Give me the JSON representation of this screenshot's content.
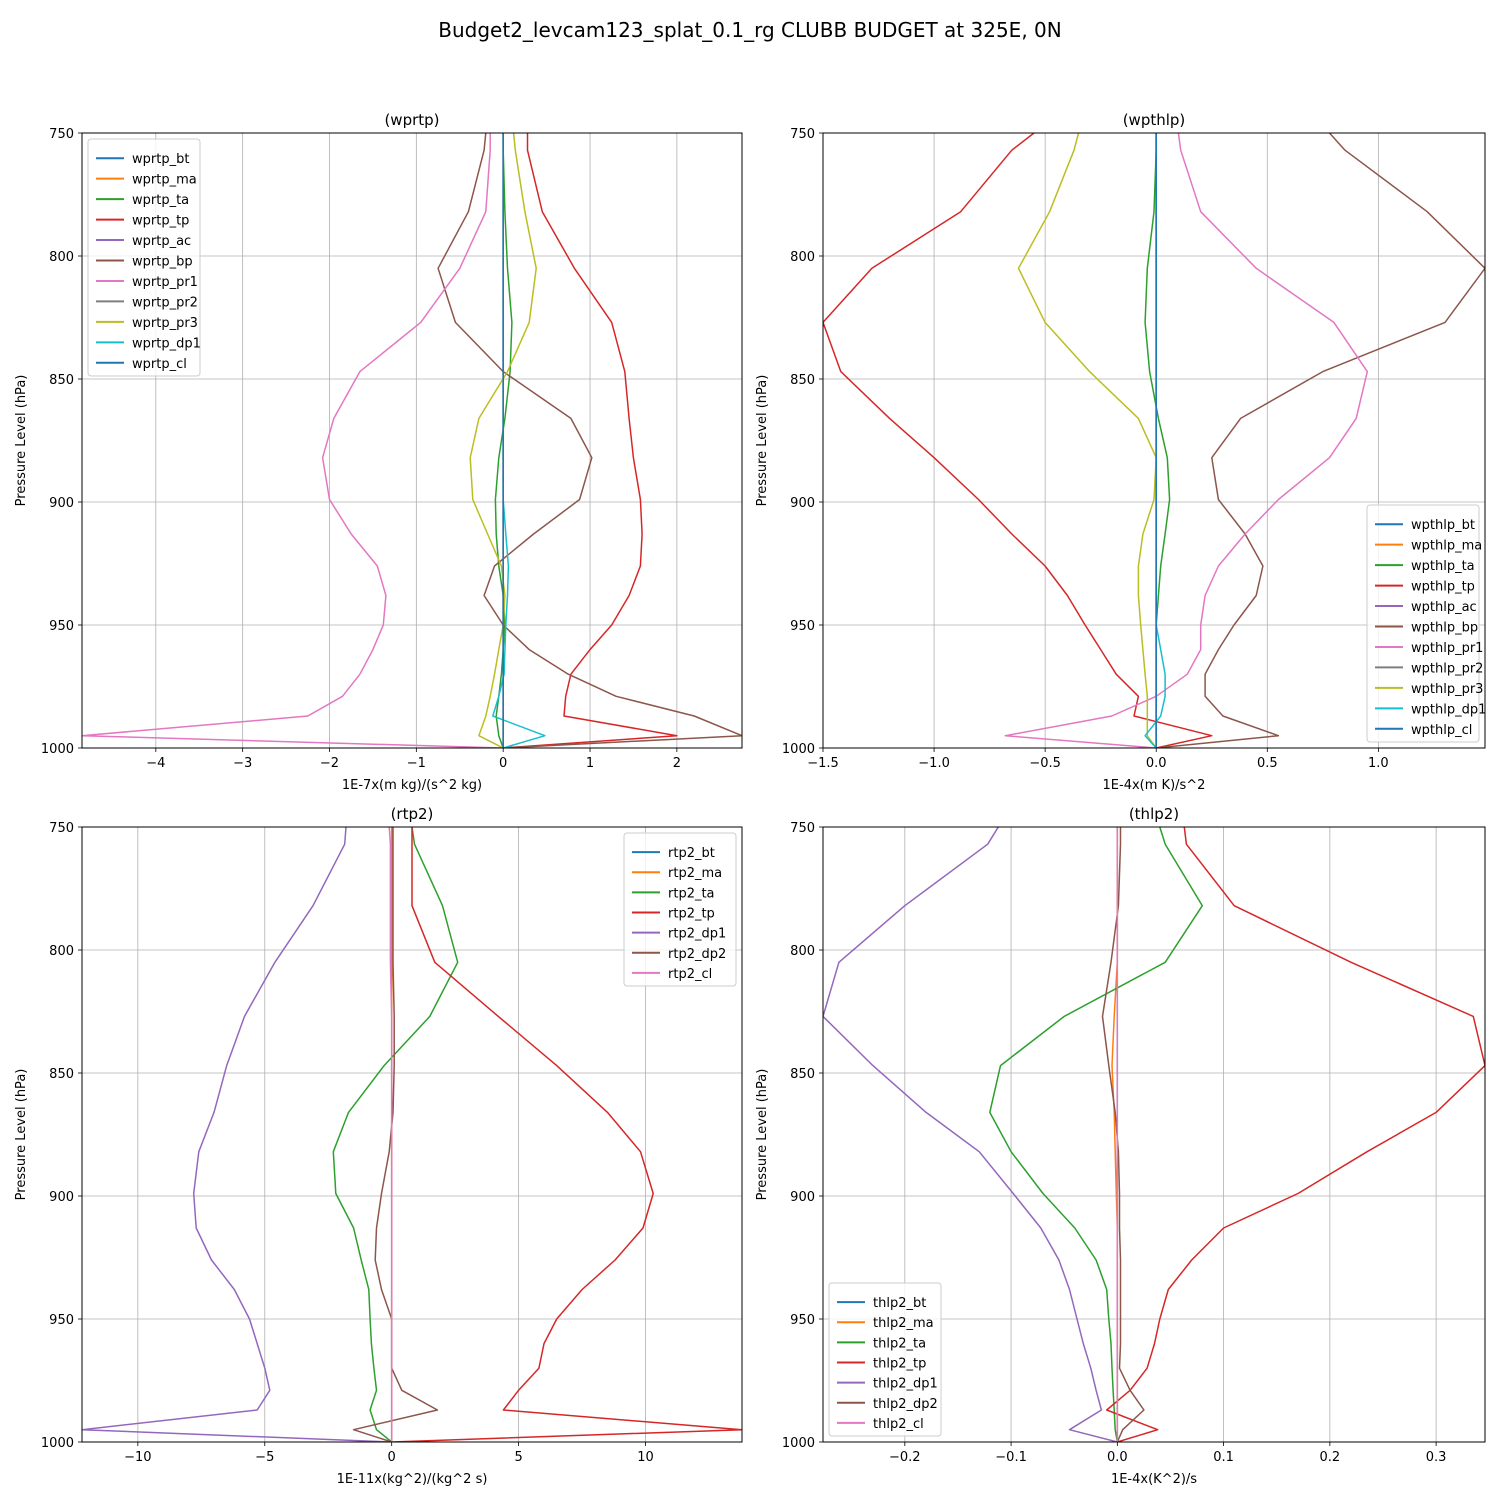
{
  "figure": {
    "title": "Budget2_levcam123_splat_0.1_rg CLUBB BUDGET at 325E, 0N"
  },
  "chart_data": [
    {
      "type": "line",
      "title": "(wprtp)",
      "xlabel": "1E-7x(m kg)/(s^2 kg)",
      "ylabel": "Pressure Level (hPa)",
      "xlim": [
        -4.85,
        2.75
      ],
      "ylim": [
        1000,
        750
      ],
      "xticks": [
        -4,
        -3,
        -2,
        -1,
        0,
        1,
        2
      ],
      "xtick_labels": [
        "−4",
        "−3",
        "−2",
        "−1",
        "0",
        "1",
        "2"
      ],
      "yticks": [
        750,
        800,
        850,
        900,
        950,
        1000
      ],
      "grid": true,
      "legend_position": "upper-left",
      "levels": [
        750,
        757,
        782,
        805,
        827,
        847,
        866,
        882,
        899,
        913,
        926,
        938,
        950,
        960,
        970,
        979,
        987,
        995,
        1000
      ],
      "series": [
        {
          "name": "wprtp_bt",
          "color": "#1f77b4",
          "values": [
            0,
            0,
            0,
            0,
            0,
            0,
            0,
            0,
            0,
            0,
            0,
            0,
            0,
            0,
            0,
            0,
            0,
            0,
            0
          ]
        },
        {
          "name": "wprtp_ma",
          "color": "#ff7f0e",
          "values": [
            0,
            0,
            0,
            0,
            0,
            0,
            0,
            0,
            0,
            0,
            0,
            0,
            0,
            0,
            0,
            0,
            0,
            0,
            0
          ]
        },
        {
          "name": "wprtp_ta",
          "color": "#2ca02c",
          "values": [
            0,
            0,
            0.02,
            0.05,
            0.1,
            0.08,
            0.02,
            -0.05,
            -0.09,
            -0.08,
            -0.05,
            0,
            0.02,
            0,
            -0.02,
            -0.05,
            -0.08,
            -0.05,
            0
          ]
        },
        {
          "name": "wprtp_tp",
          "color": "#d62728",
          "values": [
            0.28,
            0.28,
            0.45,
            0.82,
            1.25,
            1.4,
            1.45,
            1.5,
            1.58,
            1.6,
            1.58,
            1.45,
            1.25,
            1.0,
            0.78,
            0.72,
            0.7,
            2.0,
            0
          ]
        },
        {
          "name": "wprtp_ac",
          "color": "#9467bd",
          "values": [
            0,
            0,
            0,
            0,
            0,
            0,
            0,
            0,
            0,
            0,
            0,
            0,
            0,
            0,
            0,
            0,
            0,
            0,
            0
          ]
        },
        {
          "name": "wprtp_bp",
          "color": "#8c564b",
          "values": [
            -0.2,
            -0.22,
            -0.4,
            -0.75,
            -0.55,
            0,
            0.78,
            1.02,
            0.88,
            0.35,
            -0.1,
            -0.22,
            0,
            0.3,
            0.75,
            1.3,
            2.2,
            2.75,
            0
          ]
        },
        {
          "name": "wprtp_pr1",
          "color": "#e377c2",
          "values": [
            -0.15,
            -0.15,
            -0.2,
            -0.5,
            -0.95,
            -1.65,
            -1.95,
            -2.08,
            -2.0,
            -1.75,
            -1.45,
            -1.35,
            -1.38,
            -1.5,
            -1.65,
            -1.85,
            -2.25,
            -4.85,
            0
          ]
        },
        {
          "name": "wprtp_pr2",
          "color": "#7f7f7f",
          "values": [
            0,
            0,
            0,
            0,
            0,
            0,
            0,
            0,
            0,
            0,
            0,
            0,
            0,
            0,
            0,
            0,
            0,
            0,
            0
          ]
        },
        {
          "name": "wprtp_pr3",
          "color": "#bcbd22",
          "values": [
            0.12,
            0.14,
            0.25,
            0.38,
            0.3,
            0.05,
            -0.28,
            -0.38,
            -0.35,
            -0.18,
            -0.02,
            0.02,
            0,
            -0.05,
            -0.1,
            -0.15,
            -0.2,
            -0.28,
            0
          ]
        },
        {
          "name": "wprtp_dp1",
          "color": "#17becf",
          "values": [
            0,
            0,
            0,
            0,
            0,
            0,
            0,
            0,
            0,
            0.03,
            0.06,
            0.05,
            0.03,
            0.02,
            0.01,
            -0.05,
            -0.12,
            0.48,
            0
          ]
        },
        {
          "name": "wprtp_cl",
          "color": "#1f77b4",
          "values": [
            0,
            0,
            0,
            0,
            0,
            0,
            0,
            0,
            0,
            0,
            0,
            0,
            0,
            0,
            0,
            0,
            0,
            0,
            0
          ]
        }
      ]
    },
    {
      "type": "line",
      "title": "(wpthlp)",
      "xlabel": "1E-4x(m K)/s^2",
      "ylabel": "Pressure Level (hPa)",
      "xlim": [
        -1.5,
        1.48
      ],
      "ylim": [
        1000,
        750
      ],
      "xticks": [
        -1.5,
        -1.0,
        -0.5,
        0.0,
        0.5,
        1.0
      ],
      "xtick_labels": [
        "−1.5",
        "−1.0",
        "−0.5",
        "0.0",
        "0.5",
        "1.0"
      ],
      "yticks": [
        750,
        800,
        850,
        900,
        950,
        1000
      ],
      "grid": true,
      "legend_position": "lower-right",
      "levels": [
        750,
        757,
        782,
        805,
        827,
        847,
        866,
        882,
        899,
        913,
        926,
        938,
        950,
        960,
        970,
        979,
        987,
        995,
        1000
      ],
      "series": [
        {
          "name": "wpthlp_bt",
          "color": "#1f77b4",
          "values": [
            0,
            0,
            0,
            0,
            0,
            0,
            0,
            0,
            0,
            0,
            0,
            0,
            0,
            0,
            0,
            0,
            0,
            0,
            0
          ]
        },
        {
          "name": "wpthlp_ma",
          "color": "#ff7f0e",
          "values": [
            0,
            0,
            0,
            0,
            0,
            0,
            0,
            0,
            0,
            0,
            0,
            0,
            0,
            0,
            0,
            0,
            0,
            0,
            0
          ]
        },
        {
          "name": "wpthlp_ta",
          "color": "#2ca02c",
          "values": [
            0,
            0,
            -0.01,
            -0.04,
            -0.05,
            -0.03,
            0.01,
            0.05,
            0.06,
            0.04,
            0.02,
            0.01,
            0,
            0,
            0,
            0,
            0,
            0,
            0
          ]
        },
        {
          "name": "wpthlp_tp",
          "color": "#d62728",
          "values": [
            -0.55,
            -0.65,
            -0.88,
            -1.28,
            -1.5,
            -1.42,
            -1.2,
            -1.0,
            -0.8,
            -0.65,
            -0.5,
            -0.4,
            -0.32,
            -0.25,
            -0.18,
            -0.08,
            -0.1,
            0.25,
            0
          ]
        },
        {
          "name": "wpthlp_ac",
          "color": "#9467bd",
          "values": [
            0,
            0,
            0,
            0,
            0,
            0,
            0,
            0,
            0,
            0,
            0,
            0,
            0,
            0,
            0,
            0,
            0,
            0,
            0
          ]
        },
        {
          "name": "wpthlp_bp",
          "color": "#8c564b",
          "values": [
            0.78,
            0.85,
            1.22,
            1.48,
            1.3,
            0.75,
            0.38,
            0.25,
            0.28,
            0.4,
            0.48,
            0.45,
            0.35,
            0.28,
            0.22,
            0.22,
            0.3,
            0.55,
            0
          ]
        },
        {
          "name": "wpthlp_pr1",
          "color": "#e377c2",
          "values": [
            0.1,
            0.11,
            0.2,
            0.45,
            0.8,
            0.95,
            0.9,
            0.78,
            0.55,
            0.4,
            0.28,
            0.22,
            0.2,
            0.2,
            0.14,
            0,
            -0.2,
            -0.68,
            0
          ]
        },
        {
          "name": "wpthlp_pr2",
          "color": "#7f7f7f",
          "values": [
            0,
            0,
            0,
            0,
            0,
            0,
            0,
            0,
            0,
            0,
            0,
            0,
            0,
            0,
            0,
            0,
            0,
            0,
            0
          ]
        },
        {
          "name": "wpthlp_pr3",
          "color": "#bcbd22",
          "values": [
            -0.35,
            -0.37,
            -0.48,
            -0.62,
            -0.5,
            -0.3,
            -0.08,
            0,
            -0.01,
            -0.06,
            -0.08,
            -0.08,
            -0.07,
            -0.06,
            -0.05,
            -0.04,
            -0.04,
            -0.04,
            0
          ]
        },
        {
          "name": "wpthlp_dp1",
          "color": "#17becf",
          "values": [
            0,
            0,
            0,
            0,
            0,
            0,
            0,
            0,
            0,
            0,
            0,
            0,
            0,
            0.02,
            0.04,
            0.04,
            0.02,
            -0.05,
            0
          ]
        },
        {
          "name": "wpthlp_cl",
          "color": "#1f77b4",
          "values": [
            0,
            0,
            0,
            0,
            0,
            0,
            0,
            0,
            0,
            0,
            0,
            0,
            0,
            0,
            0,
            0,
            0,
            0,
            0
          ]
        }
      ]
    },
    {
      "type": "line",
      "title": "(rtp2)",
      "xlabel": "1E-11x(kg^2)/(kg^2 s)",
      "ylabel": "Pressure Level (hPa)",
      "xlim": [
        -12.2,
        13.8
      ],
      "ylim": [
        1000,
        750
      ],
      "xticks": [
        -10,
        -5,
        0,
        5,
        10
      ],
      "xtick_labels": [
        "−10",
        "−5",
        "0",
        "5",
        "10"
      ],
      "yticks": [
        750,
        800,
        850,
        900,
        950,
        1000
      ],
      "grid": true,
      "legend_position": "upper-right",
      "levels": [
        750,
        757,
        782,
        805,
        827,
        847,
        866,
        882,
        899,
        913,
        926,
        938,
        950,
        960,
        970,
        979,
        987,
        995,
        1000
      ],
      "series": [
        {
          "name": "rtp2_bt",
          "color": "#1f77b4",
          "values": [
            0,
            0,
            0,
            0,
            0,
            0,
            0,
            0,
            0,
            0,
            0,
            0,
            0,
            0,
            0,
            0,
            0,
            0,
            0
          ]
        },
        {
          "name": "rtp2_ma",
          "color": "#ff7f0e",
          "values": [
            0,
            0,
            0,
            0,
            0,
            0,
            0,
            0,
            0,
            0,
            0,
            0,
            0,
            0,
            0,
            0,
            0,
            0,
            0
          ]
        },
        {
          "name": "rtp2_ta",
          "color": "#2ca02c",
          "values": [
            0.8,
            0.9,
            2.0,
            2.6,
            1.5,
            -0.3,
            -1.7,
            -2.3,
            -2.2,
            -1.5,
            -1.2,
            -0.9,
            -0.85,
            -0.8,
            -0.7,
            -0.6,
            -0.85,
            -0.6,
            0
          ]
        },
        {
          "name": "rtp2_tp",
          "color": "#d62728",
          "values": [
            0.8,
            0.8,
            0.8,
            1.7,
            4.2,
            6.5,
            8.5,
            9.8,
            10.3,
            9.9,
            8.8,
            7.5,
            6.5,
            6.0,
            5.8,
            5.0,
            4.4,
            13.8,
            0
          ]
        },
        {
          "name": "rtp2_dp1",
          "color": "#9467bd",
          "values": [
            -1.8,
            -1.85,
            -3.1,
            -4.6,
            -5.8,
            -6.5,
            -7.0,
            -7.6,
            -7.8,
            -7.7,
            -7.1,
            -6.2,
            -5.6,
            -5.3,
            -5.0,
            -4.8,
            -5.3,
            -12.2,
            0
          ]
        },
        {
          "name": "rtp2_dp2",
          "color": "#8c564b",
          "values": [
            0.05,
            0.05,
            0.05,
            0.05,
            0.1,
            0.1,
            0.05,
            -0.1,
            -0.4,
            -0.6,
            -0.65,
            -0.4,
            0,
            0,
            0,
            0.4,
            1.8,
            -1.5,
            0
          ]
        },
        {
          "name": "rtp2_cl",
          "color": "#e377c2",
          "values": [
            -0.1,
            -0.05,
            -0.05,
            -0.05,
            0,
            0,
            0,
            0,
            0,
            0,
            0,
            0,
            0,
            0,
            0,
            0,
            0,
            0,
            0
          ]
        }
      ]
    },
    {
      "type": "line",
      "title": "(thlp2)",
      "xlabel": "1E-4x(K^2)/s",
      "ylabel": "Pressure Level (hPa)",
      "xlim": [
        -0.277,
        0.346
      ],
      "ylim": [
        1000,
        750
      ],
      "xticks": [
        -0.2,
        -0.1,
        0.0,
        0.1,
        0.2,
        0.3
      ],
      "xtick_labels": [
        "−0.2",
        "−0.1",
        "0.0",
        "0.1",
        "0.2",
        "0.3"
      ],
      "yticks": [
        750,
        800,
        850,
        900,
        950,
        1000
      ],
      "grid": true,
      "legend_position": "lower-left",
      "levels": [
        750,
        757,
        782,
        805,
        827,
        847,
        866,
        882,
        899,
        913,
        926,
        938,
        950,
        960,
        970,
        979,
        987,
        995,
        1000
      ],
      "series": [
        {
          "name": "thlp2_bt",
          "color": "#1f77b4",
          "values": [
            0,
            0,
            0,
            0,
            0,
            0,
            0,
            0,
            0,
            0,
            0,
            0,
            0,
            0,
            0,
            0,
            0,
            0,
            0
          ]
        },
        {
          "name": "thlp2_ma",
          "color": "#ff7f0e",
          "values": [
            0,
            0,
            0,
            0,
            -0.003,
            -0.005,
            -0.003,
            -0.002,
            -0.001,
            0,
            0,
            0,
            0,
            0,
            0,
            0,
            0,
            0,
            0
          ]
        },
        {
          "name": "thlp2_ta",
          "color": "#2ca02c",
          "values": [
            0.04,
            0.045,
            0.08,
            0.045,
            -0.05,
            -0.11,
            -0.12,
            -0.1,
            -0.07,
            -0.04,
            -0.02,
            -0.01,
            -0.008,
            -0.006,
            -0.005,
            -0.004,
            -0.003,
            -0.002,
            0
          ]
        },
        {
          "name": "thlp2_tp",
          "color": "#d62728",
          "values": [
            0.063,
            0.065,
            0.11,
            0.22,
            0.335,
            0.346,
            0.3,
            0.235,
            0.17,
            0.1,
            0.07,
            0.048,
            0.04,
            0.035,
            0.028,
            0.012,
            -0.01,
            0.038,
            0
          ]
        },
        {
          "name": "thlp2_dp1",
          "color": "#9467bd",
          "values": [
            -0.112,
            -0.122,
            -0.2,
            -0.262,
            -0.277,
            -0.23,
            -0.18,
            -0.13,
            -0.098,
            -0.072,
            -0.055,
            -0.045,
            -0.038,
            -0.032,
            -0.025,
            -0.02,
            -0.015,
            -0.045,
            0
          ]
        },
        {
          "name": "thlp2_dp2",
          "color": "#8c564b",
          "values": [
            0.003,
            0.003,
            0.001,
            -0.006,
            -0.014,
            -0.008,
            -0.002,
            0.001,
            0.002,
            0.002,
            0.003,
            0.003,
            0.003,
            0.003,
            0.002,
            0.012,
            0.025,
            0.005,
            0
          ]
        },
        {
          "name": "thlp2_cl",
          "color": "#e377c2",
          "values": [
            0,
            0,
            0,
            0,
            0,
            0,
            0,
            0,
            0,
            0,
            0,
            0,
            0,
            0,
            0,
            0,
            0,
            0,
            0
          ]
        }
      ]
    }
  ]
}
